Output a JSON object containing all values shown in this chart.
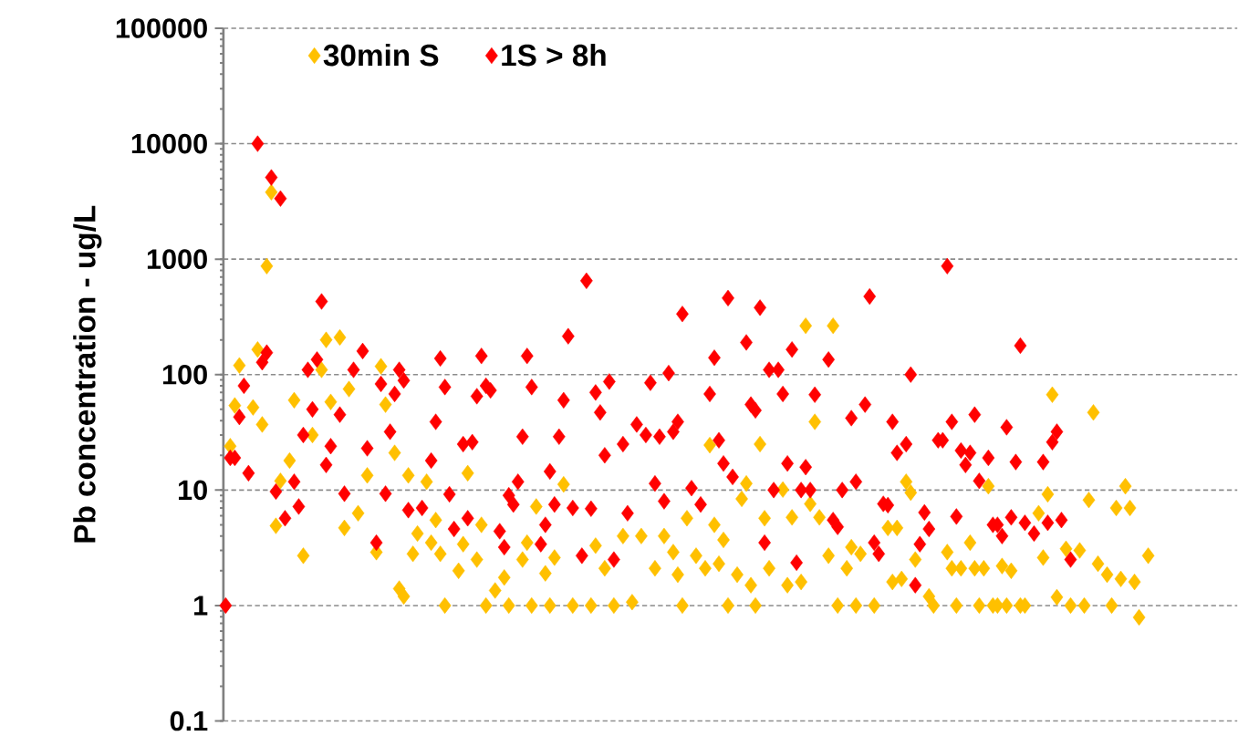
{
  "chart_data": {
    "type": "scatter",
    "ylabel": "Pb concentration  - ug/L",
    "log": "y",
    "grid": "y",
    "legend": "top left",
    "marker": "diamond",
    "tick_labels": "y",
    "ylim": [
      0.1,
      100000
    ],
    "yticks": [
      0.1,
      1,
      10,
      100,
      1000,
      10000,
      100000
    ],
    "categories": [
      null,
      null,
      null,
      null,
      null,
      null,
      null,
      null,
      null,
      null,
      null,
      null,
      null,
      null,
      null,
      null,
      null,
      null,
      null,
      null,
      null,
      null,
      null,
      null,
      null,
      null,
      null,
      null,
      null,
      null,
      null,
      null,
      null,
      null,
      null,
      null,
      null,
      null,
      null,
      null,
      null,
      null,
      null,
      null,
      null,
      null,
      null,
      null,
      null,
      null,
      null,
      null,
      null,
      null,
      null,
      null,
      null,
      null,
      null,
      null,
      null,
      null,
      null,
      null,
      null,
      null,
      null,
      null,
      null,
      null,
      null,
      null,
      null,
      null,
      null,
      null,
      null,
      null,
      null,
      null,
      null,
      null,
      null,
      null,
      null,
      null,
      null,
      null,
      null,
      null,
      null,
      null,
      null,
      null,
      null,
      null,
      null,
      null,
      null,
      null,
      null,
      null,
      null,
      null,
      null,
      null,
      null,
      null,
      null,
      null,
      null,
      null,
      null,
      null,
      null,
      null,
      null,
      null,
      null,
      null,
      null,
      null,
      null,
      null,
      null,
      null,
      null,
      null,
      null,
      null,
      null,
      null,
      null,
      null,
      null,
      null,
      null,
      null,
      null,
      null,
      null,
      null,
      null,
      null,
      null,
      null,
      null,
      null,
      null,
      null,
      null,
      null,
      null,
      null,
      null,
      null,
      null,
      null,
      null,
      null,
      null,
      null,
      null,
      null,
      null,
      null,
      null,
      null,
      null,
      null,
      null,
      null,
      null,
      null,
      null,
      null,
      null,
      null,
      null,
      null,
      null,
      null,
      null,
      null,
      null,
      null,
      null,
      null,
      null,
      null,
      null,
      null,
      null,
      null,
      null,
      null,
      null,
      null,
      null,
      null,
      null,
      null,
      null,
      null,
      null,
      null,
      null,
      null,
      null,
      null,
      null,
      null,
      null,
      null,
      null,
      null,
      null,
      null,
      null,
      null,
      null,
      null
    ],
    "series": [
      {
        "name": "30min S",
        "color": "#ffc000",
        "values": [
          null,
          24,
          54,
          120,
          null,
          null,
          52,
          165,
          37,
          870,
          3800,
          4.9,
          12,
          null,
          18,
          60,
          null,
          2.7,
          null,
          30,
          null,
          110,
          200,
          58,
          null,
          210,
          4.7,
          75,
          null,
          6.3,
          null,
          13.4,
          null,
          2.9,
          118,
          55,
          null,
          21,
          1.4,
          1.2,
          13.4,
          2.8,
          4.2,
          null,
          11.8,
          3.5,
          5.5,
          2.8,
          1,
          null,
          null,
          2,
          3.4,
          14,
          null,
          2.5,
          5,
          1,
          null,
          1.35,
          null,
          1.75,
          1,
          null,
          null,
          2.5,
          3.5,
          1,
          7.2,
          null,
          1.9,
          1,
          2.6,
          null,
          11.2,
          null,
          1,
          null,
          null,
          null,
          1,
          3.3,
          null,
          2.1,
          null,
          1,
          null,
          4,
          null,
          1.07,
          null,
          4,
          null,
          null,
          2.1,
          null,
          4,
          null,
          2.9,
          1.85,
          1,
          5.7,
          null,
          2.7,
          null,
          2.1,
          24.5,
          5,
          2.3,
          3.7,
          1,
          null,
          1.85,
          8.4,
          11.4,
          1.5,
          1,
          25,
          5.7,
          2.1,
          null,
          null,
          10.1,
          1.5,
          5.8,
          null,
          1.6,
          265,
          7.6,
          39,
          5.8,
          null,
          2.7,
          265,
          1,
          null,
          2.1,
          3.2,
          1,
          2.8,
          null,
          null,
          1,
          null,
          null,
          4.7,
          1.6,
          4.7,
          1.7,
          11.8,
          9.5,
          2.5,
          null,
          null,
          1.2,
          1,
          null,
          null,
          2.9,
          2.1,
          1,
          2.1,
          null,
          3.5,
          2.1,
          1,
          2.1,
          10.8,
          1,
          1,
          2.2,
          1,
          2,
          null,
          1,
          1,
          null,
          null,
          6.3,
          2.6,
          9.2,
          67,
          1.18,
          null,
          3.1,
          1,
          null,
          3,
          1,
          8.2,
          47,
          2.3,
          null,
          1.85,
          1,
          7,
          1.7,
          10.8,
          7,
          1.6,
          0.79,
          null,
          2.7,
          null,
          null,
          null,
          null,
          null,
          null,
          null,
          null,
          null,
          null,
          null,
          null,
          null,
          null,
          null,
          null,
          null,
          null,
          null
        ]
      },
      {
        "name": "1S > 8h",
        "color": "#ff0000",
        "values": [
          1,
          19,
          19,
          43,
          80,
          14,
          null,
          10000,
          128,
          155,
          5100,
          9.7,
          3350,
          5.7,
          null,
          11.8,
          7.2,
          30,
          110,
          50,
          135,
          430,
          16.5,
          24,
          null,
          45,
          9.3,
          null,
          110,
          null,
          160,
          23,
          null,
          3.5,
          83,
          9.3,
          32,
          68,
          110,
          89,
          6.7,
          null,
          null,
          7,
          null,
          18,
          39,
          138,
          78,
          9.2,
          4.6,
          null,
          25,
          5.7,
          26,
          65,
          145,
          80,
          73,
          null,
          4.4,
          3.2,
          9,
          7.5,
          11.8,
          29,
          145,
          78,
          null,
          3.4,
          5,
          14.5,
          7.5,
          29,
          60,
          215,
          7,
          null,
          2.7,
          650,
          6.9,
          70,
          47,
          20,
          87,
          2.5,
          null,
          25,
          6.3,
          null,
          37,
          null,
          30,
          85,
          11.4,
          29,
          8,
          103,
          32,
          39,
          335,
          null,
          10.4,
          null,
          7.5,
          null,
          68,
          140,
          27,
          17,
          460,
          13,
          null,
          null,
          190,
          55,
          49,
          380,
          3.5,
          110,
          10,
          110,
          68,
          17,
          165,
          2.35,
          10,
          15.8,
          10,
          67,
          null,
          null,
          135,
          5.5,
          4.8,
          10,
          null,
          42,
          11.8,
          null,
          55,
          475,
          3.5,
          2.8,
          7.6,
          7.4,
          39,
          21,
          null,
          25,
          100,
          1.5,
          3.4,
          6.4,
          4.6,
          null,
          27,
          27,
          870,
          39,
          5.9,
          22,
          16.5,
          21,
          45,
          12,
          null,
          19,
          5,
          5,
          4,
          35,
          5.8,
          17.5,
          178,
          5.2,
          null,
          4.2,
          null,
          17.5,
          5.2,
          26,
          32,
          5.5,
          null,
          2.5,
          null,
          null,
          null,
          null,
          null,
          null,
          null,
          null,
          null,
          null,
          null,
          null,
          null,
          null,
          null,
          null,
          null,
          null,
          null,
          null,
          null,
          null,
          null,
          null,
          null,
          null,
          null,
          null,
          null,
          null,
          null,
          null,
          null,
          null,
          null,
          null
        ]
      }
    ]
  }
}
